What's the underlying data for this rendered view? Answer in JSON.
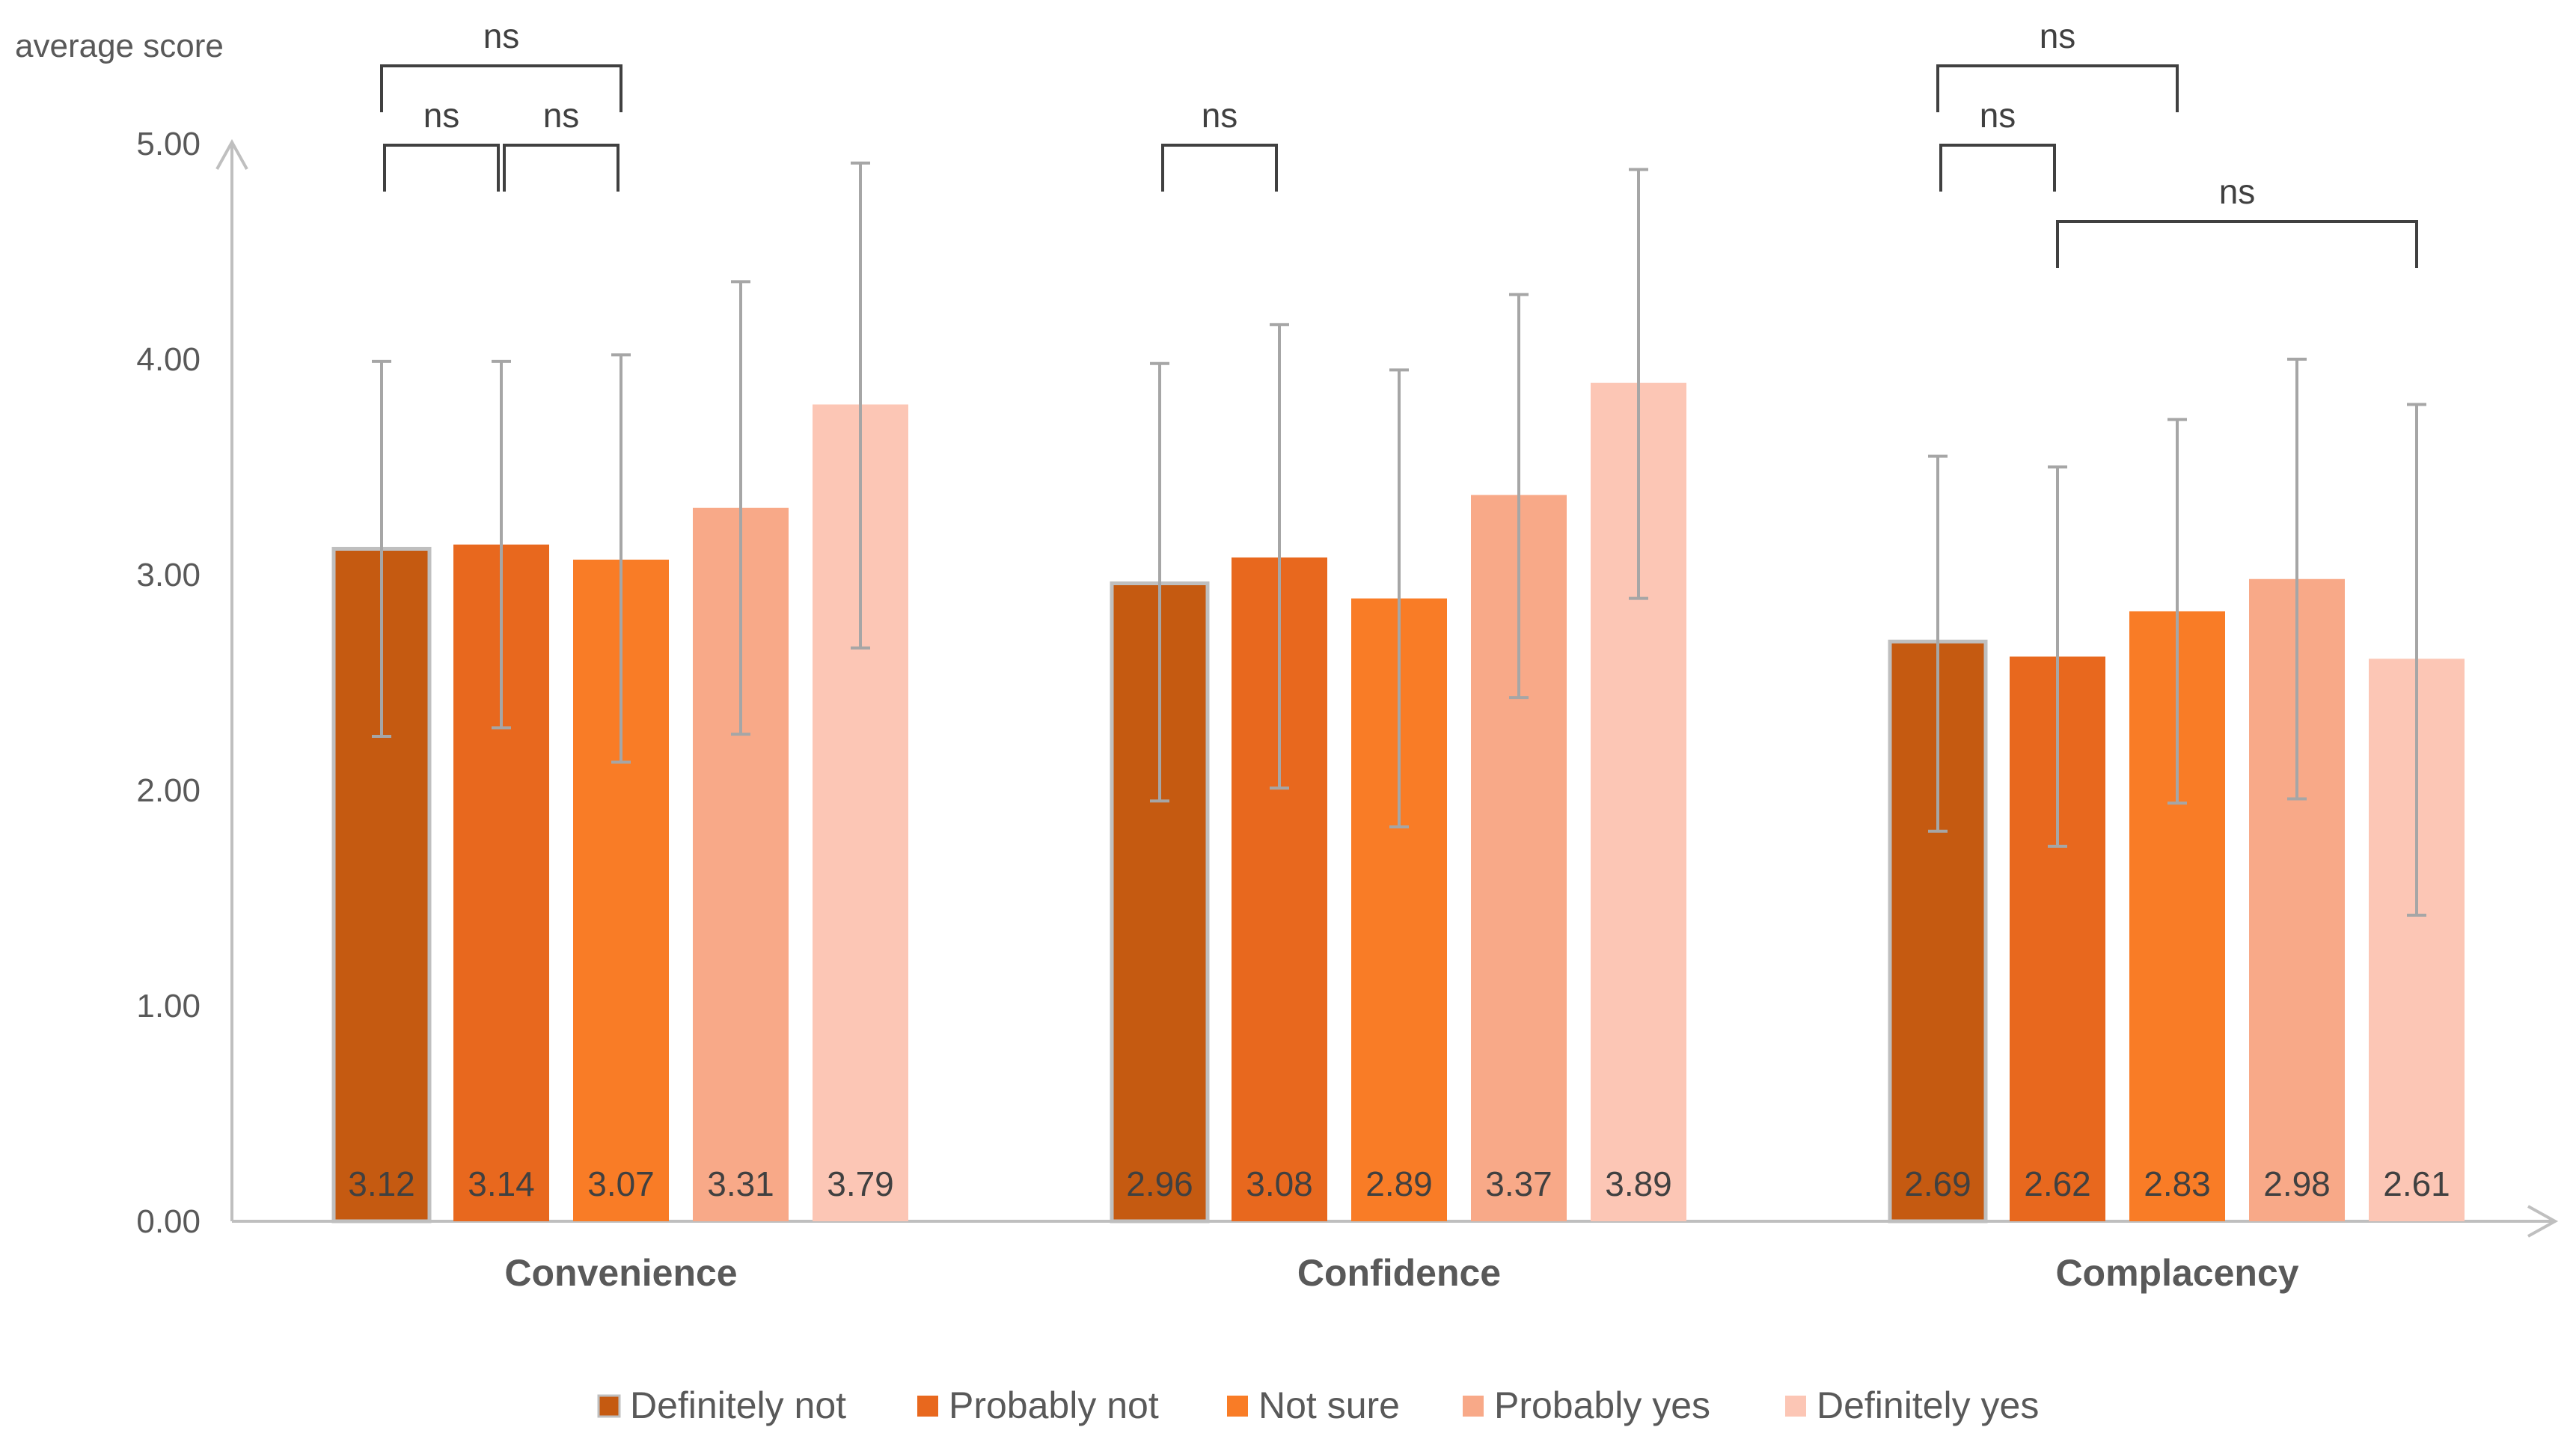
{
  "chart_data": {
    "type": "bar",
    "ylabel": "average score",
    "ylim": [
      0,
      5
    ],
    "yticks": [
      "0.00",
      "1.00",
      "2.00",
      "3.00",
      "4.00",
      "5.00"
    ],
    "categories": [
      "Convenience",
      "Confidence",
      "Complacency"
    ],
    "series": [
      {
        "name": "Definitely not",
        "color": "#C55A11",
        "values": [
          3.12,
          2.96,
          2.69
        ],
        "labels": [
          "3.12",
          "2.96",
          "2.69"
        ],
        "err_low": [
          2.25,
          1.95,
          1.81
        ],
        "err_high": [
          3.99,
          3.98,
          3.55
        ]
      },
      {
        "name": "Probably not",
        "color": "#E8681E",
        "values": [
          3.14,
          3.08,
          2.62
        ],
        "labels": [
          "3.14",
          "3.08",
          "2.62"
        ],
        "err_low": [
          2.29,
          2.01,
          1.74
        ],
        "err_high": [
          3.99,
          4.16,
          3.5
        ]
      },
      {
        "name": "Not sure",
        "color": "#F97C26",
        "values": [
          3.07,
          2.89,
          2.83
        ],
        "labels": [
          "3.07",
          "2.89",
          "2.83"
        ],
        "err_low": [
          2.13,
          1.83,
          1.94
        ],
        "err_high": [
          4.02,
          3.95,
          3.72
        ]
      },
      {
        "name": "Probably yes",
        "color": "#F8A988",
        "values": [
          3.31,
          3.37,
          2.98
        ],
        "labels": [
          "3.31",
          "3.37",
          "2.98"
        ],
        "err_low": [
          2.26,
          2.43,
          1.96
        ],
        "err_high": [
          4.36,
          4.3,
          4.0
        ]
      },
      {
        "name": "Definitely yes",
        "color": "#FCC6B5",
        "values": [
          3.79,
          3.89,
          2.61
        ],
        "labels": [
          "3.79",
          "3.89",
          "2.61"
        ],
        "err_low": [
          2.66,
          2.89,
          1.42
        ],
        "err_high": [
          4.91,
          4.88,
          3.79
        ]
      }
    ],
    "annotations": [
      {
        "text": "ns",
        "category": 0,
        "from": 0,
        "to": 2,
        "level": 1
      },
      {
        "text": "ns",
        "category": 0,
        "from": 0,
        "to": 1,
        "level": 0
      },
      {
        "text": "ns",
        "category": 0,
        "from": 1,
        "to": 2,
        "level": 0
      },
      {
        "text": "ns",
        "category": 1,
        "from": 0,
        "to": 1,
        "level": 0
      },
      {
        "text": "ns",
        "category": 2,
        "from": 0,
        "to": 2,
        "level": 1
      },
      {
        "text": "ns",
        "category": 2,
        "from": 0,
        "to": 1,
        "level": 0
      },
      {
        "text": "ns",
        "category": 2,
        "from": 1,
        "to": 4,
        "level": -1
      }
    ],
    "legend_position": "bottom",
    "grid": false
  }
}
